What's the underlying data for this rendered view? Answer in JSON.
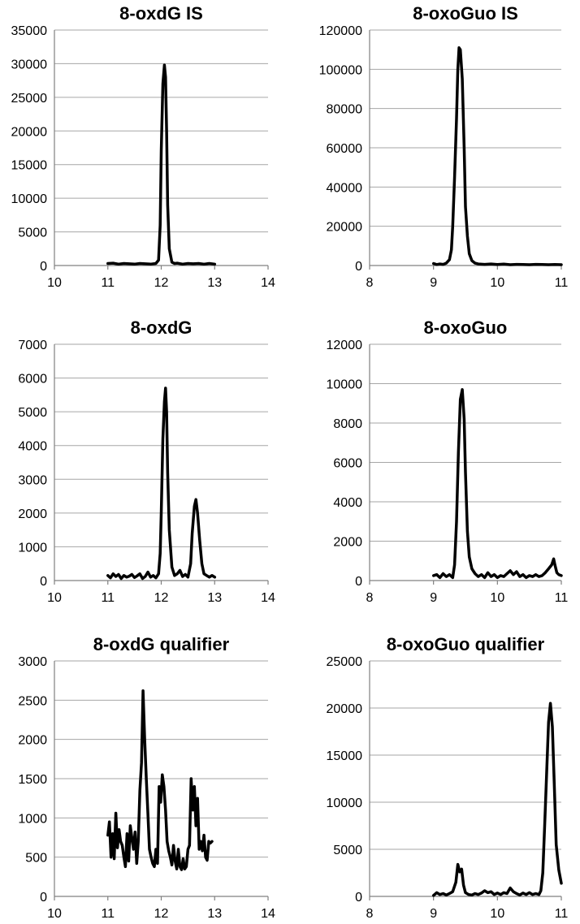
{
  "chart_data": [
    {
      "type": "line",
      "title": "8-oxdG IS",
      "xlim": [
        10,
        14
      ],
      "ylim": [
        0,
        35000
      ],
      "x_ticks": [
        "10",
        "11",
        "12",
        "13",
        "14"
      ],
      "y_ticks": [
        "0",
        "5000",
        "10000",
        "15000",
        "20000",
        "25000",
        "30000",
        "35000"
      ],
      "grid": true,
      "series": [
        {
          "x": [
            11.0,
            11.1,
            11.2,
            11.3,
            11.4,
            11.5,
            11.6,
            11.7,
            11.8,
            11.9,
            11.95,
            11.98,
            12.0,
            12.03,
            12.06,
            12.08,
            12.1,
            12.12,
            12.15,
            12.2,
            12.25,
            12.3,
            12.4,
            12.5,
            12.6,
            12.7,
            12.8,
            12.9,
            13.0
          ],
          "y": [
            300,
            350,
            200,
            300,
            250,
            200,
            300,
            250,
            200,
            300,
            800,
            6000,
            17000,
            27000,
            29800,
            28000,
            20000,
            9000,
            2500,
            500,
            300,
            350,
            200,
            300,
            250,
            300,
            200,
            300,
            200
          ]
        }
      ]
    },
    {
      "type": "line",
      "title": "8-oxoGuo IS",
      "xlim": [
        8,
        11
      ],
      "ylim": [
        0,
        120000
      ],
      "x_ticks": [
        "8",
        "9",
        "10",
        "11"
      ],
      "y_ticks": [
        "0",
        "20000",
        "40000",
        "60000",
        "80000",
        "100000",
        "120000"
      ],
      "grid": true,
      "series": [
        {
          "x": [
            9.0,
            9.05,
            9.1,
            9.15,
            9.2,
            9.25,
            9.28,
            9.3,
            9.33,
            9.36,
            9.38,
            9.4,
            9.42,
            9.45,
            9.48,
            9.5,
            9.53,
            9.56,
            9.6,
            9.65,
            9.7,
            9.8,
            9.9,
            10.0,
            10.1,
            10.2,
            10.3,
            10.4,
            10.5,
            10.6,
            10.7,
            10.8,
            10.9,
            11.0
          ],
          "y": [
            1000,
            500,
            800,
            600,
            1200,
            3000,
            8000,
            20000,
            45000,
            75000,
            100000,
            111000,
            110000,
            95000,
            60000,
            30000,
            15000,
            6000,
            2500,
            1200,
            800,
            600,
            800,
            500,
            700,
            400,
            600,
            500,
            400,
            600,
            500,
            400,
            500,
            400
          ]
        }
      ]
    },
    {
      "type": "line",
      "title": "8-oxdG",
      "xlim": [
        10,
        14
      ],
      "ylim": [
        0,
        7000
      ],
      "x_ticks": [
        "10",
        "11",
        "12",
        "13",
        "14"
      ],
      "y_ticks": [
        "0",
        "1000",
        "2000",
        "3000",
        "4000",
        "5000",
        "6000",
        "7000"
      ],
      "grid": true,
      "series": [
        {
          "x": [
            11.0,
            11.05,
            11.1,
            11.15,
            11.2,
            11.25,
            11.3,
            11.35,
            11.4,
            11.45,
            11.5,
            11.55,
            11.6,
            11.65,
            11.7,
            11.75,
            11.8,
            11.85,
            11.9,
            11.95,
            11.98,
            12.0,
            12.03,
            12.06,
            12.08,
            12.1,
            12.12,
            12.15,
            12.2,
            12.25,
            12.3,
            12.35,
            12.4,
            12.45,
            12.5,
            12.55,
            12.58,
            12.62,
            12.65,
            12.68,
            12.72,
            12.76,
            12.8,
            12.85,
            12.9,
            12.95,
            13.0
          ],
          "y": [
            150,
            80,
            200,
            120,
            180,
            60,
            150,
            100,
            130,
            180,
            90,
            140,
            200,
            60,
            120,
            250,
            100,
            150,
            80,
            200,
            800,
            2000,
            4200,
            5300,
            5700,
            5000,
            3200,
            1500,
            400,
            150,
            200,
            300,
            120,
            180,
            100,
            500,
            1400,
            2200,
            2400,
            2000,
            1200,
            500,
            200,
            150,
            100,
            150,
            100
          ]
        }
      ]
    },
    {
      "type": "line",
      "title": "8-oxoGuo",
      "xlim": [
        8,
        11
      ],
      "ylim": [
        0,
        12000
      ],
      "x_ticks": [
        "8",
        "9",
        "10",
        "11"
      ],
      "y_ticks": [
        "0",
        "2000",
        "4000",
        "6000",
        "8000",
        "10000",
        "12000"
      ],
      "grid": true,
      "series": [
        {
          "x": [
            9.0,
            9.05,
            9.1,
            9.15,
            9.2,
            9.25,
            9.3,
            9.33,
            9.36,
            9.39,
            9.42,
            9.45,
            9.48,
            9.5,
            9.53,
            9.56,
            9.6,
            9.65,
            9.7,
            9.75,
            9.8,
            9.85,
            9.9,
            9.95,
            10.0,
            10.05,
            10.1,
            10.15,
            10.2,
            10.25,
            10.3,
            10.35,
            10.4,
            10.45,
            10.5,
            10.55,
            10.6,
            10.65,
            10.7,
            10.75,
            10.8,
            10.85,
            10.88,
            10.9,
            10.93,
            10.96,
            11.0
          ],
          "y": [
            250,
            300,
            150,
            350,
            200,
            300,
            150,
            800,
            3000,
            6500,
            9200,
            9700,
            8200,
            5500,
            2500,
            1200,
            600,
            350,
            200,
            300,
            150,
            400,
            200,
            300,
            150,
            250,
            200,
            350,
            500,
            300,
            450,
            200,
            300,
            150,
            250,
            200,
            300,
            200,
            250,
            400,
            600,
            800,
            1100,
            800,
            400,
            300,
            250
          ]
        }
      ]
    },
    {
      "type": "line",
      "title": "8-oxdG qualifier",
      "xlim": [
        10,
        14
      ],
      "ylim": [
        0,
        3000
      ],
      "x_ticks": [
        "10",
        "11",
        "12",
        "13",
        "14"
      ],
      "y_ticks": [
        "0",
        "500",
        "1000",
        "1500",
        "2000",
        "2500",
        "3000"
      ],
      "grid": true,
      "series": [
        {
          "x": [
            11.0,
            11.03,
            11.06,
            11.09,
            11.12,
            11.15,
            11.18,
            11.21,
            11.24,
            11.27,
            11.3,
            11.33,
            11.36,
            11.39,
            11.42,
            11.45,
            11.48,
            11.51,
            11.54,
            11.57,
            11.6,
            11.63,
            11.66,
            11.69,
            11.72,
            11.75,
            11.78,
            11.81,
            11.84,
            11.87,
            11.9,
            11.93,
            11.96,
            11.99,
            12.02,
            12.05,
            12.08,
            12.11,
            12.14,
            12.17,
            12.2,
            12.23,
            12.26,
            12.29,
            12.32,
            12.35,
            12.38,
            12.41,
            12.44,
            12.47,
            12.5,
            12.53,
            12.56,
            12.59,
            12.62,
            12.65,
            12.68,
            12.71,
            12.74,
            12.77,
            12.8,
            12.83,
            12.86,
            12.89,
            12.92,
            12.95
          ],
          "y": [
            780,
            950,
            500,
            800,
            480,
            1060,
            620,
            850,
            700,
            650,
            500,
            380,
            800,
            450,
            900,
            750,
            600,
            820,
            420,
            700,
            1350,
            1700,
            2620,
            2000,
            1500,
            1050,
            600,
            500,
            420,
            380,
            600,
            420,
            1400,
            1200,
            1550,
            1400,
            1100,
            700,
            580,
            500,
            400,
            650,
            450,
            350,
            600,
            380,
            340,
            480,
            350,
            380,
            600,
            650,
            1500,
            1100,
            1400,
            900,
            1250,
            600,
            700,
            580,
            780,
            500,
            460,
            700,
            680,
            700
          ]
        }
      ]
    },
    {
      "type": "line",
      "title": "8-oxoGuo qualifier",
      "xlim": [
        8,
        11
      ],
      "ylim": [
        0,
        25000
      ],
      "x_ticks": [
        "8",
        "9",
        "10",
        "11"
      ],
      "y_ticks": [
        "0",
        "5000",
        "10000",
        "15000",
        "20000",
        "25000"
      ],
      "grid": true,
      "series": [
        {
          "x": [
            9.0,
            9.05,
            9.1,
            9.15,
            9.2,
            9.25,
            9.3,
            9.35,
            9.38,
            9.41,
            9.44,
            9.47,
            9.5,
            9.55,
            9.6,
            9.65,
            9.7,
            9.75,
            9.8,
            9.85,
            9.9,
            9.95,
            10.0,
            10.05,
            10.1,
            10.15,
            10.2,
            10.25,
            10.3,
            10.35,
            10.4,
            10.45,
            10.5,
            10.55,
            10.6,
            10.65,
            10.68,
            10.71,
            10.74,
            10.77,
            10.8,
            10.83,
            10.86,
            10.89,
            10.92,
            10.96,
            11.0
          ],
          "y": [
            100,
            400,
            200,
            300,
            150,
            300,
            500,
            1500,
            3400,
            2600,
            2900,
            1200,
            400,
            200,
            150,
            300,
            200,
            350,
            600,
            400,
            500,
            200,
            350,
            200,
            400,
            300,
            900,
            500,
            300,
            150,
            350,
            200,
            400,
            200,
            300,
            200,
            600,
            2500,
            7500,
            13000,
            18500,
            20500,
            18000,
            12000,
            5500,
            2800,
            1400
          ]
        }
      ]
    }
  ]
}
